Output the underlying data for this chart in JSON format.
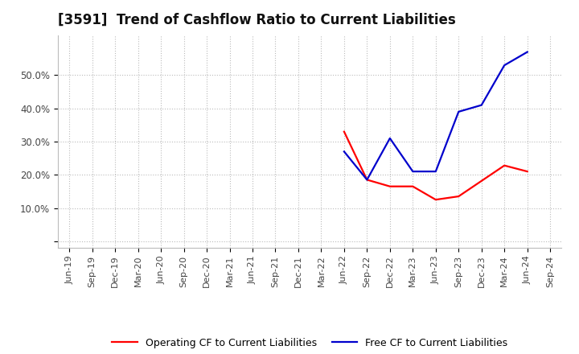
{
  "title": "[3591]  Trend of Cashflow Ratio to Current Liabilities",
  "x_labels": [
    "Jun-19",
    "Sep-19",
    "Dec-19",
    "Mar-20",
    "Jun-20",
    "Sep-20",
    "Dec-20",
    "Mar-21",
    "Jun-21",
    "Sep-21",
    "Dec-21",
    "Mar-22",
    "Jun-22",
    "Sep-22",
    "Dec-22",
    "Mar-23",
    "Jun-23",
    "Sep-23",
    "Dec-23",
    "Mar-24",
    "Jun-24",
    "Sep-24"
  ],
  "operating_cf": [
    null,
    null,
    null,
    null,
    null,
    null,
    null,
    null,
    null,
    null,
    null,
    null,
    0.33,
    0.185,
    0.165,
    0.165,
    0.125,
    0.135,
    null,
    0.228,
    0.21,
    null
  ],
  "free_cf": [
    null,
    null,
    null,
    null,
    null,
    null,
    null,
    null,
    null,
    null,
    null,
    null,
    0.27,
    0.185,
    0.31,
    0.21,
    0.21,
    0.39,
    0.41,
    0.53,
    0.57,
    null
  ],
  "operating_color": "#ff0000",
  "free_color": "#0000cc",
  "ylim_min": -0.02,
  "ylim_max": 0.62,
  "yticks": [
    0.0,
    0.1,
    0.2,
    0.3,
    0.4,
    0.5
  ],
  "ytick_labels": [
    "",
    "10.0%",
    "20.0%",
    "30.0%",
    "40.0%",
    "50.0%"
  ],
  "background_color": "#ffffff",
  "plot_bg_color": "#ffffff",
  "grid_color": "#bbbbbb",
  "title_fontsize": 12,
  "legend_fontsize": 9,
  "tick_fontsize": 8
}
